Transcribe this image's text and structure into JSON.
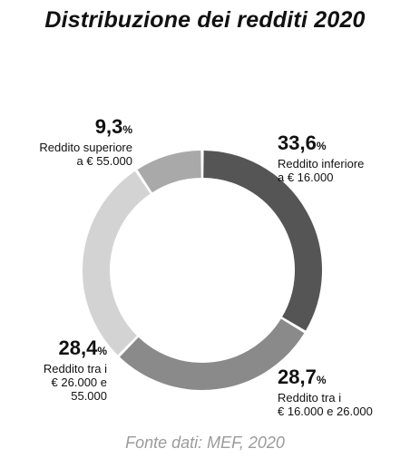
{
  "chart_data": {
    "type": "pie",
    "title": "Distribuzione dei redditi 2020",
    "source": "Fonte dati: MEF, 2020",
    "categories": [
      "Reddito inferiore a € 16.000",
      "Reddito tra i € 16.000 e 26.000",
      "Reddito tra i € 26.000 e 55.000",
      "Reddito superiore a € 55.000"
    ],
    "values": [
      33.6,
      28.7,
      28.4,
      9.3
    ],
    "value_labels": [
      "33,6",
      "28,7",
      "28,4",
      "9,3"
    ],
    "unit": "%",
    "label_lines": [
      [
        "Reddito inferiore",
        "a € 16.000"
      ],
      [
        "Reddito tra i",
        "€ 16.000 e 26.000"
      ],
      [
        "Reddito tra i",
        "€ 26.000 e",
        "55.000"
      ],
      [
        "Reddito superiore",
        "a € 55.000"
      ]
    ],
    "colors": [
      "#555555",
      "#8a8a8a",
      "#d3d3d3",
      "#a9a9a9"
    ],
    "donut": true
  }
}
